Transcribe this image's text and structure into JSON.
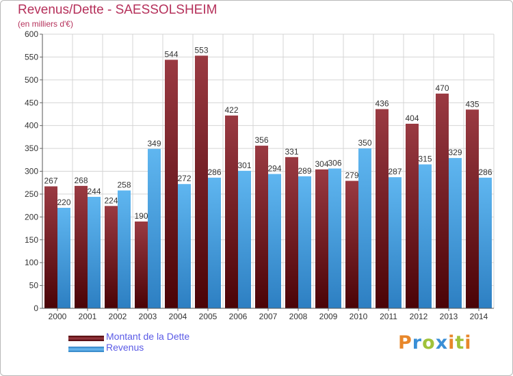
{
  "title": "Revenus/Dette - SAESSOLSHEIM",
  "subtitle": "(en milliers d'€)",
  "logo": {
    "text": "Proxiti",
    "letters": [
      {
        "char": "P",
        "color": "#e8872a"
      },
      {
        "char": "r",
        "color": "#3a8fd6"
      },
      {
        "char": "o",
        "color": "#a0c23a"
      },
      {
        "char": "x",
        "color": "#3a8fd6"
      },
      {
        "char": "i",
        "color": "#e8872a"
      },
      {
        "char": "t",
        "color": "#a0c23a"
      },
      {
        "char": "i",
        "color": "#e8872a"
      }
    ]
  },
  "chart_data": {
    "type": "bar",
    "title": "Revenus/Dette - SAESSOLSHEIM",
    "subtitle": "(en milliers d'€)",
    "categories": [
      "2000",
      "2001",
      "2002",
      "2003",
      "2004",
      "2005",
      "2006",
      "2007",
      "2008",
      "2009",
      "2010",
      "2011",
      "2012",
      "2013",
      "2014"
    ],
    "series": [
      {
        "name": "Montant de la Dette",
        "color": "#7a1e24",
        "values": [
          267,
          268,
          224,
          190,
          544,
          553,
          422,
          356,
          331,
          304,
          279,
          436,
          404,
          470,
          435
        ]
      },
      {
        "name": "Revenus",
        "color": "#4aa6e6",
        "values": [
          220,
          244,
          258,
          349,
          272,
          286,
          301,
          294,
          289,
          306,
          350,
          287,
          315,
          329,
          286
        ]
      }
    ],
    "ylim": [
      0,
      600
    ],
    "yticks": [
      0,
      50,
      100,
      150,
      200,
      250,
      300,
      350,
      400,
      450,
      500,
      550,
      600
    ],
    "grid": true,
    "legend": "bottom-left"
  }
}
